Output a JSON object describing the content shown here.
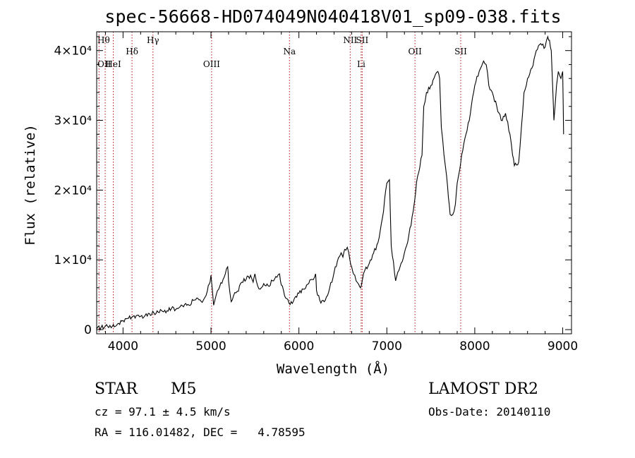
{
  "chart_data": {
    "type": "line",
    "title": "spec-56668-HD074049N040418V01_sp09-038.fits",
    "xlabel": "Wavelength (Å)",
    "ylabel": "Flux (relative)",
    "xlim": [
      3700,
      9100
    ],
    "ylim": [
      -600,
      42700
    ],
    "xticks": [
      4000,
      5000,
      6000,
      7000,
      8000,
      9000
    ],
    "yticks": [
      {
        "value": 0,
        "label": "0"
      },
      {
        "value": 10000,
        "label": "1×10⁴"
      },
      {
        "value": 20000,
        "label": "2×10⁴"
      },
      {
        "value": 30000,
        "label": "3×10⁴"
      },
      {
        "value": 40000,
        "label": "4×10⁴"
      }
    ],
    "lines": [
      {
        "label": "Hθ",
        "x": 3797,
        "row": 0
      },
      {
        "label": "OII",
        "x": 3727,
        "row": 2
      },
      {
        "label": "HeI",
        "x": 3889,
        "row": 2
      },
      {
        "label": "Hδ",
        "x": 4102,
        "row": 1
      },
      {
        "label": "Hγ",
        "x": 4340,
        "row": 0
      },
      {
        "label": "OIII",
        "x": 5007,
        "row": 2
      },
      {
        "label": "Na",
        "x": 5893,
        "row": 1
      },
      {
        "label": "NII",
        "x": 6583,
        "row": 0
      },
      {
        "label": "SII",
        "x": 6720,
        "row": 0
      },
      {
        "label": "Li",
        "x": 6708,
        "row": 2
      },
      {
        "label": "OII",
        "x": 7320,
        "row": 1
      },
      {
        "label": "SII",
        "x": 7840,
        "row": 1
      }
    ],
    "series": [
      {
        "x": [
          3700,
          3750,
          3800,
          3850,
          3880,
          3900,
          3950,
          4000,
          4050,
          4100,
          4150,
          4200,
          4250,
          4300,
          4350,
          4400,
          4450,
          4500,
          4550,
          4600,
          4650,
          4700,
          4750,
          4800,
          4850,
          4900,
          4930,
          4960,
          4980,
          5000,
          5030,
          5060,
          5100,
          5150,
          5190,
          5200,
          5230,
          5270,
          5300,
          5350,
          5400,
          5450,
          5480,
          5500,
          5530,
          5560,
          5600,
          5650,
          5700,
          5750,
          5780,
          5800,
          5850,
          5900,
          5950,
          6000,
          6050,
          6100,
          6150,
          6190,
          6200,
          6250,
          6300,
          6350,
          6400,
          6450,
          6480,
          6500,
          6520,
          6550,
          6580,
          6600,
          6620,
          6650,
          6680,
          6700,
          6720,
          6750,
          6800,
          6850,
          6900,
          6950,
          7000,
          7030,
          7050,
          7100,
          7150,
          7200,
          7250,
          7300,
          7350,
          7400,
          7420,
          7450,
          7500,
          7550,
          7580,
          7600,
          7620,
          7650,
          7680,
          7700,
          7720,
          7750,
          7780,
          7800,
          7830,
          7850,
          7900,
          7950,
          8000,
          8050,
          8100,
          8130,
          8160,
          8200,
          8250,
          8300,
          8350,
          8400,
          8430,
          8450,
          8500,
          8530,
          8560,
          8600,
          8650,
          8700,
          8750,
          8800,
          8830,
          8850,
          8870,
          8900,
          8930,
          8950,
          8980,
          9000,
          9010
        ],
        "values": [
          100,
          300,
          500,
          600,
          500,
          400,
          900,
          1300,
          1600,
          1800,
          2000,
          1900,
          2000,
          2300,
          2400,
          2500,
          2600,
          2700,
          3000,
          2900,
          3300,
          3600,
          3500,
          4200,
          4500,
          3900,
          4600,
          5600,
          6500,
          7800,
          3500,
          5000,
          6200,
          7500,
          9000,
          7000,
          4000,
          5300,
          5500,
          6800,
          7200,
          7800,
          6800,
          8000,
          6300,
          5800,
          6600,
          6300,
          7000,
          7500,
          8000,
          6400,
          4500,
          3600,
          4500,
          5200,
          5800,
          6500,
          7200,
          8000,
          5600,
          3800,
          4200,
          6000,
          8200,
          10300,
          11000,
          10400,
          11500,
          11800,
          10000,
          9000,
          8000,
          7000,
          6500,
          6000,
          7000,
          8500,
          9500,
          11000,
          12500,
          16000,
          21000,
          21500,
          12000,
          7000,
          9000,
          11000,
          13500,
          17000,
          22000,
          25000,
          32000,
          34000,
          35000,
          36500,
          37000,
          36000,
          29000,
          25000,
          22000,
          19000,
          16500,
          16500,
          18000,
          21000,
          23000,
          25000,
          28000,
          31000,
          35000,
          37000,
          38500,
          38000,
          35000,
          34000,
          32000,
          30000,
          31000,
          28000,
          25000,
          23500,
          24000,
          29000,
          34000,
          36000,
          37500,
          40000,
          41000,
          40500,
          42000,
          41500,
          40000,
          30000,
          35000,
          37000,
          36000,
          37000,
          28000
        ]
      }
    ]
  },
  "info": {
    "object_class": "STAR",
    "subclass": "M5",
    "cz": "cz = 97.1 ± 4.5 km/s",
    "radec": "RA = 116.01482, DEC =   4.78595",
    "survey": "LAMOST DR2",
    "obs_date": "Obs-Date: 20140110"
  }
}
